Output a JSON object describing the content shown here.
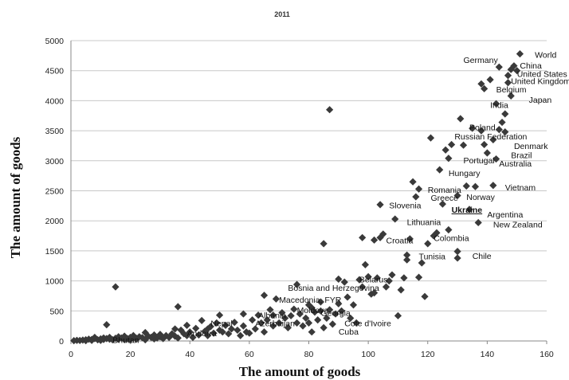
{
  "chart_data": {
    "type": "scatter",
    "title": "2011",
    "xlabel": "The amount of goods",
    "ylabel": "The amount of goods",
    "xlim": [
      0,
      160
    ],
    "ylim": [
      0,
      5000
    ],
    "xticks": [
      0,
      20,
      40,
      60,
      80,
      100,
      120,
      140,
      160
    ],
    "yticks": [
      0,
      500,
      1000,
      1500,
      2000,
      2500,
      3000,
      3500,
      4000,
      4500,
      5000
    ],
    "grid": "horizontal",
    "marker": "diamond",
    "point_color": "#3a3a3a",
    "points": [
      [
        1,
        5
      ],
      [
        2,
        10
      ],
      [
        3,
        8
      ],
      [
        4,
        15
      ],
      [
        5,
        20
      ],
      [
        5,
        5
      ],
      [
        6,
        30
      ],
      [
        7,
        25
      ],
      [
        7,
        10
      ],
      [
        8,
        40
      ],
      [
        8,
        60
      ],
      [
        9,
        20
      ],
      [
        10,
        35
      ],
      [
        10,
        10
      ],
      [
        11,
        50
      ],
      [
        11,
        25
      ],
      [
        12,
        40
      ],
      [
        12,
        270
      ],
      [
        13,
        30
      ],
      [
        13,
        60
      ],
      [
        14,
        20
      ],
      [
        15,
        900
      ],
      [
        15,
        45
      ],
      [
        16,
        30
      ],
      [
        16,
        70
      ],
      [
        17,
        50
      ],
      [
        18,
        25
      ],
      [
        18,
        80
      ],
      [
        19,
        40
      ],
      [
        20,
        60
      ],
      [
        20,
        20
      ],
      [
        21,
        90
      ],
      [
        22,
        45
      ],
      [
        22,
        30
      ],
      [
        23,
        70
      ],
      [
        24,
        55
      ],
      [
        25,
        140
      ],
      [
        25,
        20
      ],
      [
        26,
        80
      ],
      [
        27,
        60
      ],
      [
        28,
        35
      ],
      [
        28,
        100
      ],
      [
        29,
        50
      ],
      [
        30,
        110
      ],
      [
        30,
        70
      ],
      [
        31,
        40
      ],
      [
        32,
        90
      ],
      [
        33,
        60
      ],
      [
        34,
        120
      ],
      [
        35,
        200
      ],
      [
        35,
        80
      ],
      [
        36,
        570
      ],
      [
        36,
        50
      ],
      [
        37,
        180
      ],
      [
        38,
        120
      ],
      [
        39,
        90
      ],
      [
        39,
        260
      ],
      [
        40,
        150
      ],
      [
        41,
        60
      ],
      [
        42,
        210
      ],
      [
        43,
        100
      ],
      [
        44,
        340
      ],
      [
        45,
        160
      ],
      [
        46,
        200
      ],
      [
        46,
        90
      ],
      [
        47,
        240
      ],
      [
        48,
        130
      ],
      [
        49,
        300
      ],
      [
        50,
        180
      ],
      [
        50,
        430
      ],
      [
        51,
        150
      ],
      [
        52,
        260
      ],
      [
        53,
        120
      ],
      [
        54,
        200
      ],
      [
        55,
        310
      ],
      [
        56,
        180
      ],
      [
        57,
        90
      ],
      [
        58,
        450
      ],
      [
        58,
        250
      ],
      [
        59,
        150
      ],
      [
        60,
        130
      ],
      [
        61,
        350
      ],
      [
        62,
        200
      ],
      [
        63,
        430
      ],
      [
        64,
        300
      ],
      [
        65,
        150
      ],
      [
        65,
        760
      ],
      [
        66,
        350
      ],
      [
        67,
        520
      ],
      [
        68,
        250
      ],
      [
        68,
        430
      ],
      [
        69,
        700
      ],
      [
        70,
        300
      ],
      [
        71,
        470
      ],
      [
        72,
        380
      ],
      [
        73,
        220
      ],
      [
        74,
        420
      ],
      [
        75,
        530
      ],
      [
        76,
        940
      ],
      [
        76,
        300
      ],
      [
        77,
        450
      ],
      [
        78,
        250
      ],
      [
        79,
        380
      ],
      [
        80,
        300
      ],
      [
        80,
        600
      ],
      [
        81,
        550
      ],
      [
        81,
        150
      ],
      [
        82,
        480
      ],
      [
        83,
        350
      ],
      [
        84,
        500
      ],
      [
        84,
        650
      ],
      [
        85,
        1620
      ],
      [
        85,
        220
      ],
      [
        86,
        380
      ],
      [
        87,
        3850
      ],
      [
        87,
        520
      ],
      [
        88,
        280
      ],
      [
        89,
        450
      ],
      [
        90,
        620
      ],
      [
        90,
        1030
      ],
      [
        91,
        500
      ],
      [
        92,
        980
      ],
      [
        93,
        730
      ],
      [
        94,
        380
      ],
      [
        95,
        600
      ],
      [
        96,
        300
      ],
      [
        97,
        1020
      ],
      [
        98,
        900
      ],
      [
        98,
        1720
      ],
      [
        99,
        1270
      ],
      [
        100,
        1070
      ],
      [
        101,
        780
      ],
      [
        102,
        800
      ],
      [
        102,
        1680
      ],
      [
        103,
        1050
      ],
      [
        104,
        2270
      ],
      [
        104,
        1720
      ],
      [
        105,
        1780
      ],
      [
        106,
        900
      ],
      [
        107,
        1000
      ],
      [
        108,
        1100
      ],
      [
        109,
        2030
      ],
      [
        110,
        420
      ],
      [
        111,
        850
      ],
      [
        112,
        1050
      ],
      [
        113,
        1430
      ],
      [
        113,
        1350
      ],
      [
        114,
        1700
      ],
      [
        115,
        2650
      ],
      [
        116,
        2400
      ],
      [
        117,
        2530
      ],
      [
        117,
        1060
      ],
      [
        118,
        1300
      ],
      [
        119,
        740
      ],
      [
        120,
        1620
      ],
      [
        121,
        3380
      ],
      [
        122,
        1750
      ],
      [
        123,
        1800
      ],
      [
        124,
        2850
      ],
      [
        125,
        2280
      ],
      [
        126,
        3180
      ],
      [
        127,
        1850
      ],
      [
        127,
        3040
      ],
      [
        128,
        3270
      ],
      [
        130,
        1490
      ],
      [
        130,
        1380
      ],
      [
        130,
        2420
      ],
      [
        131,
        3700
      ],
      [
        132,
        3260
      ],
      [
        133,
        2580
      ],
      [
        134,
        2190
      ],
      [
        135,
        3540
      ],
      [
        136,
        2570
      ],
      [
        137,
        1970
      ],
      [
        138,
        3500
      ],
      [
        138,
        4280
      ],
      [
        139,
        4200
      ],
      [
        139,
        3270
      ],
      [
        140,
        3130
      ],
      [
        141,
        4350
      ],
      [
        142,
        3350
      ],
      [
        142,
        2590
      ],
      [
        143,
        3950
      ],
      [
        143,
        3030
      ],
      [
        144,
        3520
      ],
      [
        145,
        3640
      ],
      [
        146,
        3480
      ],
      [
        146,
        3780
      ],
      [
        147,
        4300
      ],
      [
        147,
        4420
      ],
      [
        148,
        4080
      ],
      [
        148,
        4520
      ],
      [
        149,
        4580
      ],
      [
        150,
        4500
      ],
      [
        151,
        4780
      ],
      [
        144,
        4560
      ]
    ],
    "annotations": [
      {
        "text": "World",
        "x": 156,
        "y": 4770
      },
      {
        "text": "Germany",
        "x": 132,
        "y": 4680
      },
      {
        "text": "China",
        "x": 151,
        "y": 4590
      },
      {
        "text": "United States",
        "x": 150,
        "y": 4450
      },
      {
        "text": "United Kingdom",
        "x": 148,
        "y": 4330
      },
      {
        "text": "Belgium",
        "x": 143,
        "y": 4190
      },
      {
        "text": "Japan",
        "x": 154,
        "y": 4020
      },
      {
        "text": "India",
        "x": 141,
        "y": 3930
      },
      {
        "text": "Poland",
        "x": 134,
        "y": 3560
      },
      {
        "text": "Russian Federation",
        "x": 129,
        "y": 3410
      },
      {
        "text": "Denmark",
        "x": 149,
        "y": 3250
      },
      {
        "text": "Brazil",
        "x": 148,
        "y": 3100
      },
      {
        "text": "Portugal",
        "x": 132,
        "y": 3010
      },
      {
        "text": "Australia",
        "x": 144,
        "y": 2960
      },
      {
        "text": "Hungary",
        "x": 127,
        "y": 2800
      },
      {
        "text": "Vietnam",
        "x": 146,
        "y": 2560
      },
      {
        "text": "Romania",
        "x": 120,
        "y": 2520
      },
      {
        "text": "Greece",
        "x": 121,
        "y": 2390
      },
      {
        "text": "Norway",
        "x": 133,
        "y": 2400
      },
      {
        "text": "Slovenia",
        "x": 107,
        "y": 2260
      },
      {
        "text": "Ukraine",
        "x": 128,
        "y": 2190,
        "bold": true
      },
      {
        "text": "Argentina",
        "x": 140,
        "y": 2110
      },
      {
        "text": "Lithuania",
        "x": 113,
        "y": 1980
      },
      {
        "text": "New Zealand",
        "x": 142,
        "y": 1940
      },
      {
        "text": "Colombia",
        "x": 122,
        "y": 1720
      },
      {
        "text": "Croatia",
        "x": 106,
        "y": 1680
      },
      {
        "text": "Tunisia",
        "x": 117,
        "y": 1410
      },
      {
        "text": "Chile",
        "x": 135,
        "y": 1420
      },
      {
        "text": "Belarus",
        "x": 97,
        "y": 1030
      },
      {
        "text": "Bosnia and Herzegovina",
        "x": 73,
        "y": 890
      },
      {
        "text": "Macedonia, FYR",
        "x": 70,
        "y": 690
      },
      {
        "text": "Moldova",
        "x": 76,
        "y": 520
      },
      {
        "text": "Georgia",
        "x": 84,
        "y": 470
      },
      {
        "text": "Albania",
        "x": 63,
        "y": 430
      },
      {
        "text": "Azerbaijan",
        "x": 62,
        "y": 300
      },
      {
        "text": "Nepal",
        "x": 47,
        "y": 300
      },
      {
        "text": "Cote d'Ivoire",
        "x": 92,
        "y": 300
      },
      {
        "text": "Cuba",
        "x": 90,
        "y": 160
      },
      {
        "text": "Andorra",
        "x": 39,
        "y": 130
      },
      {
        "text": "Bhutan",
        "x": 14,
        "y": 20
      }
    ]
  }
}
